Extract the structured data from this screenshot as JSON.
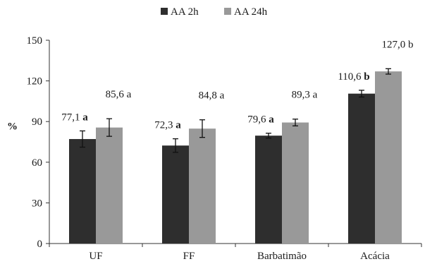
{
  "chart_data": {
    "type": "bar",
    "title": "",
    "xlabel": "",
    "ylabel": "%",
    "ylim": [
      0,
      150
    ],
    "yticks": [
      0,
      30,
      60,
      90,
      120,
      150
    ],
    "grid": false,
    "legend_position": "top-center",
    "categories": [
      "UF",
      "FF",
      "Barbatimão",
      "Acácia"
    ],
    "series": [
      {
        "name": "AA 2h",
        "color": "#2e2e2e",
        "values": [
          77.1,
          72.3,
          79.6,
          110.6
        ],
        "errors": [
          6.0,
          5.0,
          1.8,
          2.5
        ],
        "value_labels": [
          "77,1",
          "72,3",
          "79,6",
          "110,6"
        ],
        "letters": [
          "a",
          "a",
          "a",
          "b"
        ],
        "letters_bold": true
      },
      {
        "name": "AA 24h",
        "color": "#999999",
        "values": [
          85.6,
          84.8,
          89.3,
          127.0
        ],
        "errors": [
          6.5,
          6.5,
          2.5,
          2.0
        ],
        "value_labels": [
          "85,6",
          "84,8",
          "89,3",
          "127,0"
        ],
        "letters": [
          "a",
          "a",
          "a",
          "b"
        ],
        "letters_bold": false
      }
    ]
  }
}
